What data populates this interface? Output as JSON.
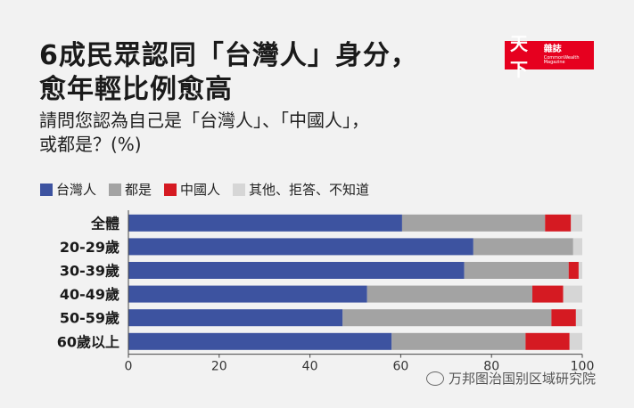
{
  "header": {
    "title_line1": "6成民眾認同「台灣人」身分，",
    "title_line2": "愈年輕比例愈高",
    "question_line1": "請問您認為自己是「台灣人」、「中國人」，",
    "question_line2": "或都是？(%)"
  },
  "logo": {
    "main": "天下",
    "zh": "雜誌",
    "en": "CommonWealth Magazine"
  },
  "watermark": {
    "text": "万邦图治国别区域研究院"
  },
  "colors": {
    "taiwanese": "#3d53a0",
    "both": "#a3a3a3",
    "chinese": "#d51a22",
    "other": "#d6d6d6"
  },
  "chart_data": {
    "type": "bar",
    "orientation": "horizontal",
    "stacked": true,
    "categories": [
      "全體",
      "20-29歲",
      "30-39歲",
      "40-49歲",
      "50-59歲",
      "60歲以上"
    ],
    "series": [
      {
        "name": "台灣人",
        "color": "#3d53a0",
        "values": [
          60.3,
          76,
          74,
          52.6,
          47.2,
          58
        ]
      },
      {
        "name": "都是",
        "color": "#a3a3a3",
        "values": [
          31.5,
          22,
          23,
          36.4,
          46,
          29.5
        ]
      },
      {
        "name": "中國人",
        "color": "#d51a22",
        "values": [
          5.7,
          0,
          2.2,
          6.8,
          5.4,
          9.7
        ]
      },
      {
        "name": "其他、拒答、不知道",
        "color": "#d6d6d6",
        "values": [
          2.5,
          2,
          0.8,
          4.2,
          1.4,
          2.8
        ]
      }
    ],
    "xlim": [
      0,
      100
    ],
    "xticks": [
      0,
      20,
      40,
      60,
      80,
      100
    ],
    "legend": "top-left",
    "grid": false
  }
}
